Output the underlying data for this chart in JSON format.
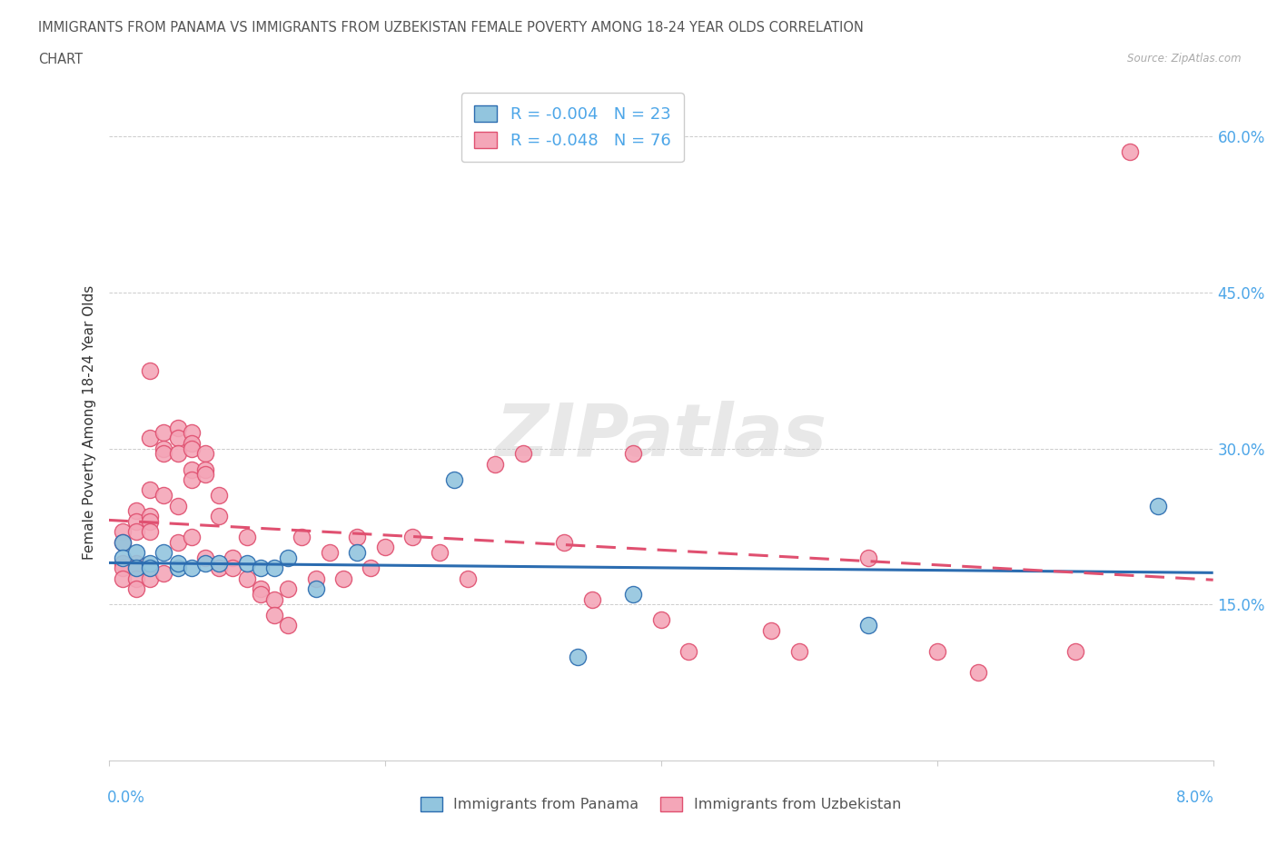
{
  "title_line1": "IMMIGRANTS FROM PANAMA VS IMMIGRANTS FROM UZBEKISTAN FEMALE POVERTY AMONG 18-24 YEAR OLDS CORRELATION",
  "title_line2": "CHART",
  "source": "Source: ZipAtlas.com",
  "ylabel": "Female Poverty Among 18-24 Year Olds",
  "yticks": [
    "15.0%",
    "30.0%",
    "45.0%",
    "60.0%"
  ],
  "ytick_vals": [
    0.15,
    0.3,
    0.45,
    0.6
  ],
  "xlim": [
    0.0,
    0.08
  ],
  "ylim": [
    0.0,
    0.65
  ],
  "watermark": "ZIPatlas",
  "color_panama": "#92C5DE",
  "color_uzbekistan": "#F4A6B8",
  "color_panama_line": "#2B6CB0",
  "color_uzbekistan_line": "#E05070",
  "color_axis_labels": "#4DA6E8",
  "color_title": "#555555",
  "panama_x": [
    0.001,
    0.001,
    0.002,
    0.002,
    0.003,
    0.003,
    0.004,
    0.005,
    0.005,
    0.006,
    0.007,
    0.008,
    0.01,
    0.011,
    0.012,
    0.013,
    0.015,
    0.018,
    0.025,
    0.034,
    0.038,
    0.055,
    0.076
  ],
  "panama_y": [
    0.21,
    0.195,
    0.2,
    0.185,
    0.19,
    0.185,
    0.2,
    0.185,
    0.19,
    0.185,
    0.19,
    0.19,
    0.19,
    0.185,
    0.185,
    0.195,
    0.165,
    0.2,
    0.27,
    0.1,
    0.16,
    0.13,
    0.245
  ],
  "uzbekistan_x": [
    0.001,
    0.001,
    0.001,
    0.001,
    0.001,
    0.002,
    0.002,
    0.002,
    0.002,
    0.002,
    0.002,
    0.002,
    0.003,
    0.003,
    0.003,
    0.003,
    0.003,
    0.003,
    0.003,
    0.004,
    0.004,
    0.004,
    0.004,
    0.004,
    0.005,
    0.005,
    0.005,
    0.005,
    0.005,
    0.006,
    0.006,
    0.006,
    0.006,
    0.006,
    0.006,
    0.007,
    0.007,
    0.007,
    0.007,
    0.008,
    0.008,
    0.008,
    0.009,
    0.009,
    0.01,
    0.01,
    0.011,
    0.011,
    0.012,
    0.012,
    0.013,
    0.013,
    0.014,
    0.015,
    0.016,
    0.017,
    0.018,
    0.019,
    0.02,
    0.022,
    0.024,
    0.026,
    0.028,
    0.03,
    0.033,
    0.035,
    0.038,
    0.04,
    0.042,
    0.048,
    0.05,
    0.055,
    0.06,
    0.063,
    0.07,
    0.074
  ],
  "uzbekistan_y": [
    0.22,
    0.21,
    0.19,
    0.185,
    0.175,
    0.24,
    0.23,
    0.22,
    0.19,
    0.185,
    0.175,
    0.165,
    0.375,
    0.31,
    0.26,
    0.235,
    0.23,
    0.22,
    0.175,
    0.315,
    0.3,
    0.295,
    0.255,
    0.18,
    0.32,
    0.31,
    0.295,
    0.245,
    0.21,
    0.315,
    0.305,
    0.3,
    0.28,
    0.27,
    0.215,
    0.295,
    0.28,
    0.275,
    0.195,
    0.255,
    0.235,
    0.185,
    0.195,
    0.185,
    0.215,
    0.175,
    0.165,
    0.16,
    0.155,
    0.14,
    0.165,
    0.13,
    0.215,
    0.175,
    0.2,
    0.175,
    0.215,
    0.185,
    0.205,
    0.215,
    0.2,
    0.175,
    0.285,
    0.295,
    0.21,
    0.155,
    0.295,
    0.135,
    0.105,
    0.125,
    0.105,
    0.195,
    0.105,
    0.085,
    0.105,
    0.585
  ],
  "panama_trend": [
    -0.004,
    0.2
  ],
  "uzbekistan_trend": [
    -0.048,
    0.22
  ],
  "legend_labels": [
    "R = -0.004   N = 23",
    "R = -0.048   N = 76"
  ],
  "bottom_legend": [
    "Immigrants from Panama",
    "Immigrants from Uzbekistan"
  ]
}
